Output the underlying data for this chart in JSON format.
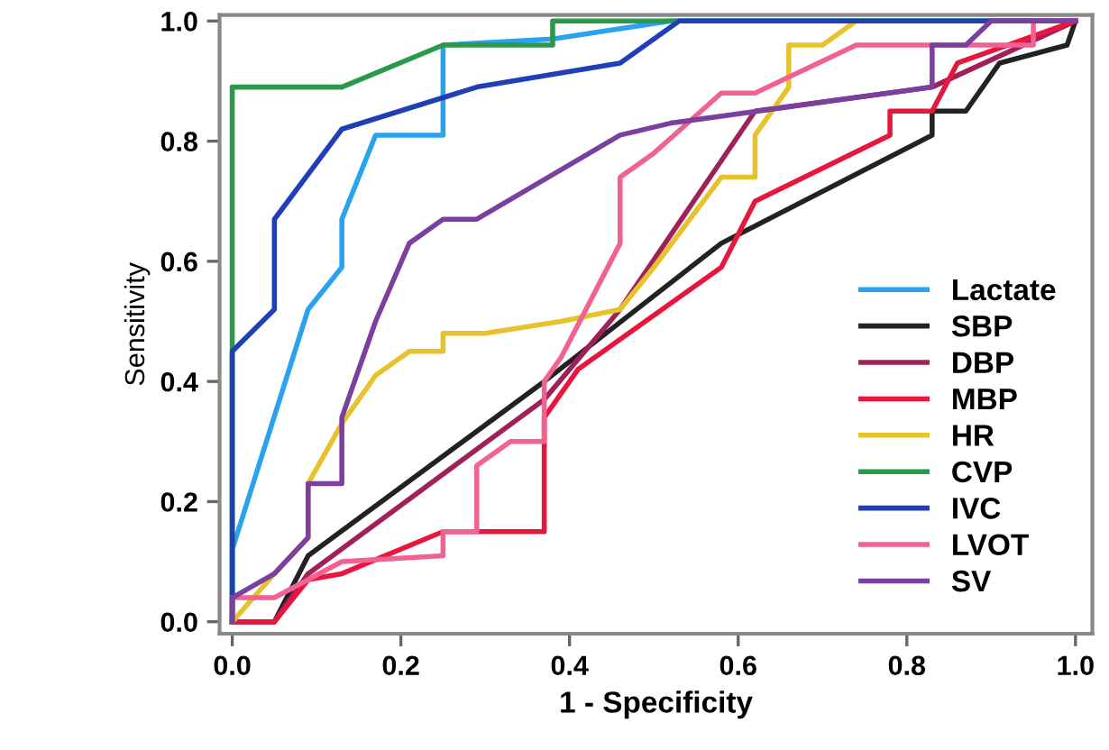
{
  "chart_data": {
    "type": "line",
    "xlabel": "1 - Specificity",
    "ylabel": "Sensitivity",
    "xlim": [
      -0.015,
      1.02
    ],
    "ylim": [
      -0.02,
      1.01
    ],
    "xticks": [
      {
        "value": 0,
        "label": "0.0"
      },
      {
        "value": 0.2,
        "label": "0.2"
      },
      {
        "value": 0.4,
        "label": "0.4"
      },
      {
        "value": 0.6,
        "label": "0.6"
      },
      {
        "value": 0.8,
        "label": "0.8"
      },
      {
        "value": 1,
        "label": "1.0"
      }
    ],
    "yticks": [
      {
        "value": 0,
        "label": "0.0"
      },
      {
        "value": 0.2,
        "label": "0.2"
      },
      {
        "value": 0.4,
        "label": "0.4"
      },
      {
        "value": 0.6,
        "label": "0.6"
      },
      {
        "value": 0.8,
        "label": "0.8"
      },
      {
        "value": 1,
        "label": "1.0"
      }
    ],
    "grid": false,
    "legend": "bottom right",
    "marker": "none",
    "line_style": "solid",
    "series": [
      {
        "name": "Lactate",
        "color": "#29a3ef",
        "x": [
          0,
          0,
          0.09,
          0.13,
          0.13,
          0.17,
          0.25,
          0.25,
          0.38,
          0.52,
          1
        ],
        "values": [
          0,
          0.12,
          0.52,
          0.59,
          0.67,
          0.81,
          0.81,
          0.96,
          0.97,
          1,
          1
        ]
      },
      {
        "name": "SBP",
        "color": "#222222",
        "x": [
          0,
          0.05,
          0.09,
          0.37,
          0.58,
          0.83,
          0.83,
          0.87,
          0.91,
          0.99,
          1
        ],
        "values": [
          0,
          0,
          0.11,
          0.4,
          0.63,
          0.81,
          0.85,
          0.85,
          0.93,
          0.96,
          1
        ]
      },
      {
        "name": "DBP",
        "color": "#a0205a",
        "x": [
          0,
          0.05,
          0.09,
          0.37,
          0.46,
          0.62,
          0.83,
          1
        ],
        "values": [
          0,
          0,
          0.08,
          0.37,
          0.52,
          0.85,
          0.89,
          1
        ]
      },
      {
        "name": "MBP",
        "color": "#e8163c",
        "x": [
          0,
          0.05,
          0.09,
          0.13,
          0.25,
          0.37,
          0.37,
          0.41,
          0.58,
          0.62,
          0.78,
          0.78,
          0.83,
          0.86,
          1
        ],
        "values": [
          0,
          0,
          0.07,
          0.08,
          0.15,
          0.15,
          0.34,
          0.42,
          0.59,
          0.7,
          0.81,
          0.85,
          0.85,
          0.93,
          1
        ]
      },
      {
        "name": "HR",
        "color": "#e8c22c",
        "x": [
          0,
          0.05,
          0.09,
          0.09,
          0.13,
          0.17,
          0.21,
          0.25,
          0.25,
          0.3,
          0.39,
          0.46,
          0.5,
          0.58,
          0.62,
          0.62,
          0.66,
          0.66,
          0.7,
          0.74,
          1
        ],
        "values": [
          0,
          0.08,
          0.14,
          0.23,
          0.33,
          0.41,
          0.45,
          0.45,
          0.48,
          0.48,
          0.5,
          0.52,
          0.59,
          0.74,
          0.74,
          0.81,
          0.89,
          0.96,
          0.96,
          1,
          1
        ]
      },
      {
        "name": "CVP",
        "color": "#2a9a4a",
        "x": [
          0,
          0,
          0.13,
          0.25,
          0.38,
          0.38,
          1
        ],
        "values": [
          0,
          0.89,
          0.89,
          0.96,
          0.96,
          1,
          1
        ]
      },
      {
        "name": "IVC",
        "color": "#1f3fb8",
        "x": [
          0,
          0,
          0.05,
          0.05,
          0.13,
          0.29,
          0.46,
          0.53,
          1
        ],
        "values": [
          0,
          0.45,
          0.52,
          0.67,
          0.82,
          0.89,
          0.93,
          1,
          1
        ]
      },
      {
        "name": "LVOT",
        "color": "#f06292",
        "x": [
          0,
          0,
          0.05,
          0.09,
          0.13,
          0.25,
          0.25,
          0.29,
          0.29,
          0.33,
          0.37,
          0.37,
          0.39,
          0.46,
          0.46,
          0.5,
          0.58,
          0.62,
          0.74,
          0.95,
          0.95,
          1
        ],
        "values": [
          0,
          0.04,
          0.04,
          0.07,
          0.1,
          0.11,
          0.15,
          0.15,
          0.26,
          0.3,
          0.3,
          0.4,
          0.44,
          0.63,
          0.74,
          0.78,
          0.88,
          0.88,
          0.96,
          0.96,
          1,
          1
        ]
      },
      {
        "name": "SV",
        "color": "#7b3fa0",
        "x": [
          0,
          0,
          0.05,
          0.09,
          0.09,
          0.13,
          0.13,
          0.17,
          0.21,
          0.25,
          0.29,
          0.46,
          0.52,
          0.83,
          0.83,
          0.87,
          0.9,
          1
        ],
        "values": [
          0,
          0.04,
          0.08,
          0.14,
          0.23,
          0.23,
          0.34,
          0.5,
          0.63,
          0.67,
          0.67,
          0.81,
          0.83,
          0.89,
          0.96,
          0.96,
          1,
          1
        ]
      }
    ]
  }
}
